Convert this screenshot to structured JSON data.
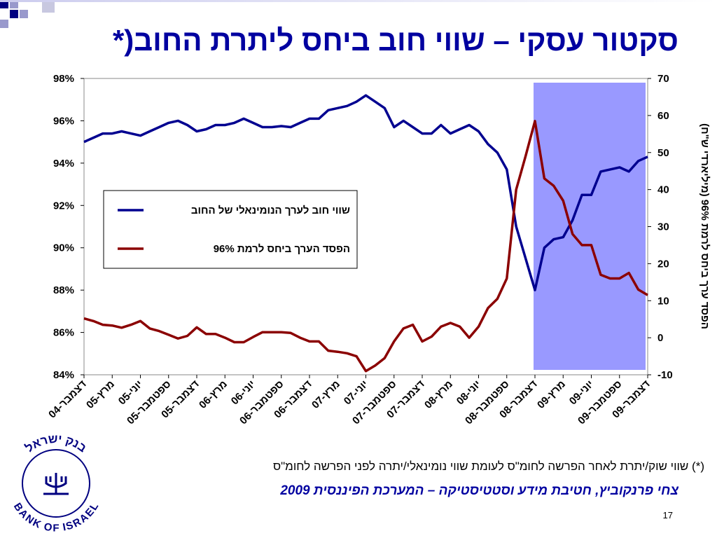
{
  "title": "סקטור עסקי – שווי חוב ביחס ליתרת החוב(*",
  "footnote": "(*) שווי שוק/יתרת לאחר הפרשה לחומ\"ס לעומת שווי נומינאלי/יתרה לפני הפרשה לחומ\"ס",
  "source": "צחי פרנקוביץ, חטיבת מידע וסטטיסטיקה – המערכת הפיננסית 2009",
  "page_number": "17",
  "logo": {
    "hebrew": "בנק ישראל",
    "english": "BANK OF ISRAEL"
  },
  "chart_data": {
    "type": "line",
    "y2_label": "הפסד ערך ביחס לרמת 96% (מיליארדי ש\"ח)",
    "categories": [
      "דצמבר-04",
      null,
      null,
      "מרץ-05",
      null,
      null,
      "יוני-05",
      null,
      null,
      "ספטמבר-05",
      null,
      null,
      "דצמבר-05",
      null,
      null,
      "מרץ-06",
      null,
      null,
      "יוני-06",
      null,
      null,
      "ספטמבר-06",
      null,
      null,
      "דצמבר-06",
      null,
      null,
      "מרץ-07",
      null,
      null,
      "יוני-07",
      null,
      null,
      "ספטמבר-07",
      null,
      null,
      "דצמבר-07",
      null,
      null,
      "מרץ-08",
      null,
      null,
      "יוני-08",
      null,
      null,
      "ספטמבר-08",
      null,
      null,
      "דצמבר-08",
      null,
      null,
      "מרץ-09",
      null,
      null,
      "יוני-09",
      null,
      null,
      "ספטמבר-09",
      null,
      null,
      "דצמבר-09"
    ],
    "series": [
      {
        "name": "שווי חוב לערך הנומינאלי של החוב",
        "color": "#000090",
        "values": [
          95.0,
          95.2,
          95.4,
          95.4,
          95.5,
          95.4,
          95.3,
          95.5,
          95.7,
          95.9,
          96.0,
          95.8,
          95.5,
          95.6,
          95.8,
          95.8,
          95.9,
          96.1,
          95.9,
          95.7,
          95.7,
          95.75,
          95.7,
          95.9,
          96.1,
          96.1,
          96.5,
          96.6,
          96.7,
          96.9,
          97.2,
          96.9,
          96.6,
          95.7,
          96.0,
          95.7,
          95.4,
          95.4,
          95.8,
          95.4,
          95.6,
          95.8,
          95.5,
          94.9,
          94.5,
          93.7,
          91.0,
          89.5,
          88.0,
          90.0,
          90.4,
          90.5,
          91.3,
          92.5,
          92.5,
          93.6,
          93.7,
          93.8,
          93.6,
          94.1,
          94.3
        ]
      },
      {
        "name": "הפסד הערך ביחס לרמת 96%",
        "color": "#8b0000",
        "axis": "y2",
        "values": [
          5.2,
          4.5,
          3.5,
          3.3,
          2.7,
          3.5,
          4.5,
          2.5,
          1.8,
          0.8,
          -0.2,
          0.5,
          2.8,
          1.0,
          1.0,
          0,
          -1.2,
          -1.2,
          0.2,
          1.5,
          1.5,
          1.5,
          1.3,
          0,
          -1.0,
          -1.0,
          -3.5,
          -3.8,
          -4.2,
          -5.0,
          -9.0,
          -7.5,
          -5.5,
          -1.0,
          2.5,
          3.5,
          -1.0,
          0.3,
          3.0,
          4.0,
          3.0,
          0,
          3.0,
          8.0,
          10.5,
          16.0,
          40.0,
          49.0,
          58.5,
          43.0,
          41.0,
          37.0,
          28.0,
          25.0,
          25.0,
          17.0,
          16.0,
          16.0,
          17.5,
          13.0,
          11.5
        ]
      }
    ],
    "ylim": [
      84,
      98
    ],
    "yticks": [
      {
        "value": 84,
        "label": "84%"
      },
      {
        "value": 86,
        "label": "86%"
      },
      {
        "value": 88,
        "label": "88%"
      },
      {
        "value": 90,
        "label": "90%"
      },
      {
        "value": 92,
        "label": "92%"
      },
      {
        "value": 94,
        "label": "94%"
      },
      {
        "value": 96,
        "label": "96%"
      },
      {
        "value": 98,
        "label": "98%"
      }
    ],
    "y2lim": [
      -10,
      70
    ],
    "y2ticks": [
      -10,
      0,
      10,
      20,
      30,
      40,
      50,
      60,
      70
    ]
  }
}
